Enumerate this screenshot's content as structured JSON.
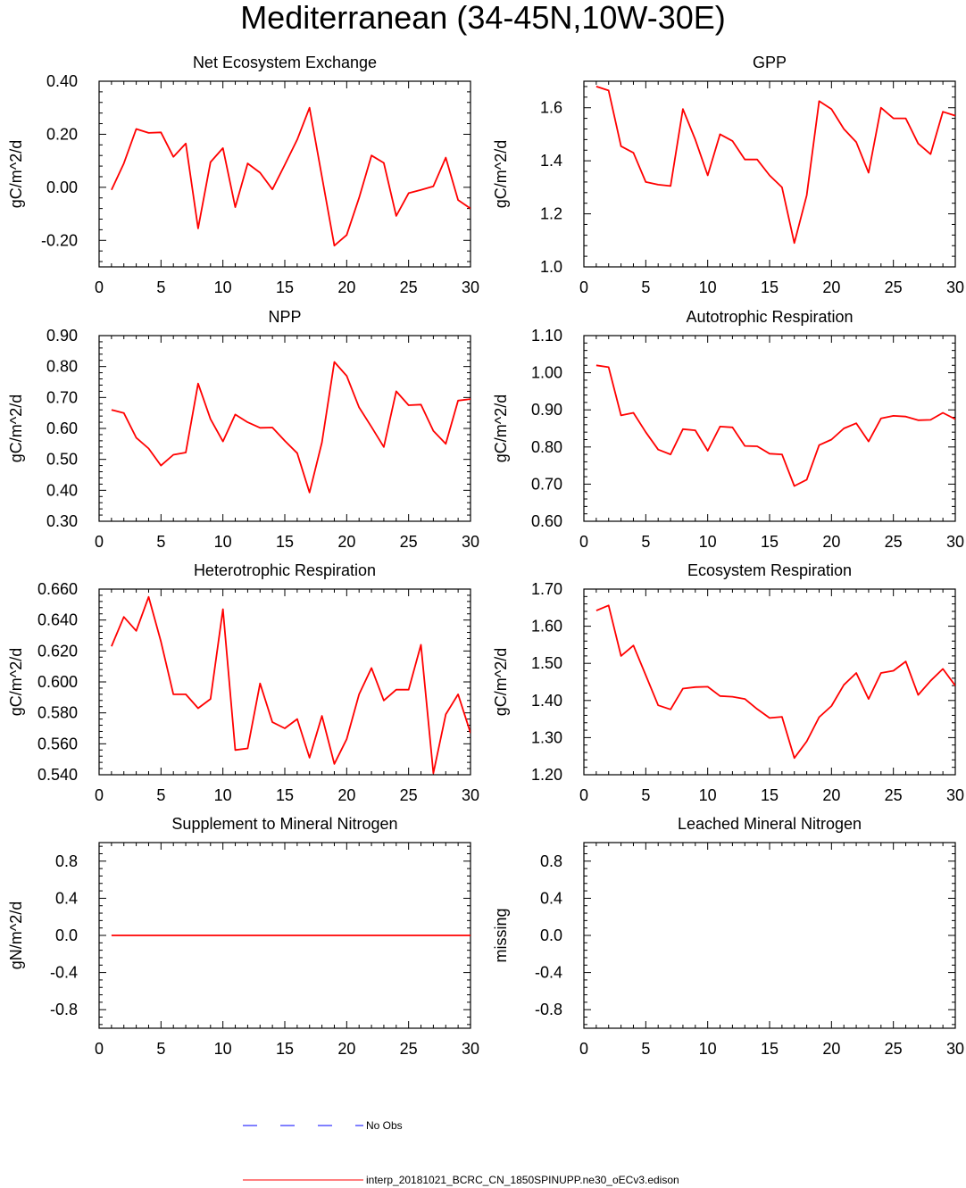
{
  "title": "Mediterranean (34-45N,10W-30E)",
  "colors": {
    "model": "#ff0000",
    "obs": "#0000ff",
    "axis": "#000000"
  },
  "legend": {
    "obs_label": "No Obs",
    "model_label": "interp_20181021_BCRC_CN_1850SPINUPP.ne30_oECv3.edison"
  },
  "chart_data": [
    {
      "type": "line",
      "title": "Net Ecosystem Exchange",
      "ylabel": "gC/m^2/d",
      "xlim": [
        0,
        30
      ],
      "ylim": [
        -0.3,
        0.4
      ],
      "xticks": [
        0,
        5,
        10,
        15,
        20,
        25,
        30
      ],
      "xtick_labels": [
        "0",
        "5",
        "10",
        "15",
        "20",
        "25",
        "30"
      ],
      "yticks": [
        -0.2,
        0.0,
        0.2,
        0.4
      ],
      "ytick_labels": [
        "-0.20",
        "0.00",
        "0.20",
        "0.40"
      ],
      "x": [
        1,
        2,
        3,
        4,
        5,
        6,
        7,
        8,
        9,
        10,
        11,
        12,
        13,
        14,
        15,
        16,
        17,
        18,
        19,
        20,
        21,
        22,
        23,
        24,
        25,
        26,
        27,
        28,
        29,
        30
      ],
      "series": [
        {
          "name": "interp_20181021_BCRC_CN_1850SPINUPP.ne30_oECv3.edison",
          "values": [
            -0.01,
            0.09,
            0.22,
            0.205,
            0.207,
            0.115,
            0.165,
            -0.155,
            0.095,
            0.148,
            -0.075,
            0.09,
            0.055,
            -0.008,
            0.085,
            0.18,
            0.3,
            0.04,
            -0.22,
            -0.18,
            -0.04,
            0.12,
            0.092,
            -0.108,
            -0.022,
            -0.01,
            0.004,
            0.112,
            -0.048,
            -0.08
          ]
        }
      ]
    },
    {
      "type": "line",
      "title": "GPP",
      "ylabel": "gC/m^2/d",
      "xlim": [
        0,
        30
      ],
      "ylim": [
        1.0,
        1.7
      ],
      "xticks": [
        0,
        5,
        10,
        15,
        20,
        25,
        30
      ],
      "xtick_labels": [
        "0",
        "5",
        "10",
        "15",
        "20",
        "25",
        "30"
      ],
      "yticks": [
        1.0,
        1.2,
        1.4,
        1.6
      ],
      "ytick_labels": [
        "1.0",
        "1.2",
        "1.4",
        "1.6"
      ],
      "x": [
        1,
        2,
        3,
        4,
        5,
        6,
        7,
        8,
        9,
        10,
        11,
        12,
        13,
        14,
        15,
        16,
        17,
        18,
        19,
        20,
        21,
        22,
        23,
        24,
        25,
        26,
        27,
        28,
        29,
        30
      ],
      "series": [
        {
          "name": "interp_20181021_BCRC_CN_1850SPINUPP.ne30_oECv3.edison",
          "values": [
            1.68,
            1.665,
            1.455,
            1.43,
            1.32,
            1.31,
            1.305,
            1.595,
            1.48,
            1.345,
            1.5,
            1.475,
            1.405,
            1.405,
            1.345,
            1.3,
            1.09,
            1.27,
            1.625,
            1.595,
            1.52,
            1.47,
            1.355,
            1.6,
            1.56,
            1.56,
            1.465,
            1.425,
            1.585,
            1.57
          ]
        }
      ]
    },
    {
      "type": "line",
      "title": "NPP",
      "ylabel": "gC/m^2/d",
      "xlim": [
        0,
        30
      ],
      "ylim": [
        0.3,
        0.9
      ],
      "xticks": [
        0,
        5,
        10,
        15,
        20,
        25,
        30
      ],
      "xtick_labels": [
        "0",
        "5",
        "10",
        "15",
        "20",
        "25",
        "30"
      ],
      "yticks": [
        0.3,
        0.4,
        0.5,
        0.6,
        0.7,
        0.8,
        0.9
      ],
      "ytick_labels": [
        "0.30",
        "0.40",
        "0.50",
        "0.60",
        "0.70",
        "0.80",
        "0.90"
      ],
      "x": [
        1,
        2,
        3,
        4,
        5,
        6,
        7,
        8,
        9,
        10,
        11,
        12,
        13,
        14,
        15,
        16,
        17,
        18,
        19,
        20,
        21,
        22,
        23,
        24,
        25,
        26,
        27,
        28,
        29,
        30
      ],
      "series": [
        {
          "name": "interp_20181021_BCRC_CN_1850SPINUPP.ne30_oECv3.edison",
          "values": [
            0.66,
            0.65,
            0.57,
            0.535,
            0.48,
            0.515,
            0.522,
            0.745,
            0.63,
            0.558,
            0.645,
            0.62,
            0.602,
            0.603,
            0.56,
            0.52,
            0.393,
            0.555,
            0.815,
            0.77,
            0.668,
            0.605,
            0.54,
            0.72,
            0.675,
            0.677,
            0.592,
            0.55,
            0.69,
            0.695
          ]
        }
      ]
    },
    {
      "type": "line",
      "title": "Autotrophic Respiration",
      "ylabel": "gC/m^2/d",
      "xlim": [
        0,
        30
      ],
      "ylim": [
        0.6,
        1.1
      ],
      "xticks": [
        0,
        5,
        10,
        15,
        20,
        25,
        30
      ],
      "xtick_labels": [
        "0",
        "5",
        "10",
        "15",
        "20",
        "25",
        "30"
      ],
      "yticks": [
        0.6,
        0.7,
        0.8,
        0.9,
        1.0,
        1.1
      ],
      "ytick_labels": [
        "0.60",
        "0.70",
        "0.80",
        "0.90",
        "1.00",
        "1.10"
      ],
      "x": [
        1,
        2,
        3,
        4,
        5,
        6,
        7,
        8,
        9,
        10,
        11,
        12,
        13,
        14,
        15,
        16,
        17,
        18,
        19,
        20,
        21,
        22,
        23,
        24,
        25,
        26,
        27,
        28,
        29,
        30
      ],
      "series": [
        {
          "name": "interp_20181021_BCRC_CN_1850SPINUPP.ne30_oECv3.edison",
          "values": [
            1.02,
            1.015,
            0.885,
            0.892,
            0.84,
            0.793,
            0.78,
            0.848,
            0.845,
            0.79,
            0.855,
            0.853,
            0.803,
            0.802,
            0.782,
            0.78,
            0.695,
            0.712,
            0.805,
            0.82,
            0.85,
            0.864,
            0.815,
            0.877,
            0.884,
            0.882,
            0.872,
            0.873,
            0.892,
            0.875
          ]
        }
      ]
    },
    {
      "type": "line",
      "title": "Heterotrophic Respiration",
      "ylabel": "gC/m^2/d",
      "xlim": [
        0,
        30
      ],
      "ylim": [
        0.54,
        0.66
      ],
      "xticks": [
        0,
        5,
        10,
        15,
        20,
        25,
        30
      ],
      "xtick_labels": [
        "0",
        "5",
        "10",
        "15",
        "20",
        "25",
        "30"
      ],
      "yticks": [
        0.54,
        0.56,
        0.58,
        0.6,
        0.62,
        0.64,
        0.66
      ],
      "ytick_labels": [
        "0.540",
        "0.560",
        "0.580",
        "0.600",
        "0.620",
        "0.640",
        "0.660"
      ],
      "x": [
        1,
        2,
        3,
        4,
        5,
        6,
        7,
        8,
        9,
        10,
        11,
        12,
        13,
        14,
        15,
        16,
        17,
        18,
        19,
        20,
        21,
        22,
        23,
        24,
        25,
        26,
        27,
        28,
        29,
        30
      ],
      "series": [
        {
          "name": "interp_20181021_BCRC_CN_1850SPINUPP.ne30_oECv3.edison",
          "values": [
            0.623,
            0.642,
            0.633,
            0.655,
            0.626,
            0.592,
            0.592,
            0.583,
            0.589,
            0.647,
            0.556,
            0.557,
            0.599,
            0.574,
            0.57,
            0.576,
            0.551,
            0.578,
            0.547,
            0.563,
            0.592,
            0.609,
            0.588,
            0.595,
            0.595,
            0.624,
            0.541,
            0.579,
            0.592,
            0.567
          ]
        }
      ]
    },
    {
      "type": "line",
      "title": "Ecosystem Respiration",
      "ylabel": "gC/m^2/d",
      "xlim": [
        0,
        30
      ],
      "ylim": [
        1.2,
        1.7
      ],
      "xticks": [
        0,
        5,
        10,
        15,
        20,
        25,
        30
      ],
      "xtick_labels": [
        "0",
        "5",
        "10",
        "15",
        "20",
        "25",
        "30"
      ],
      "yticks": [
        1.2,
        1.3,
        1.4,
        1.5,
        1.6,
        1.7
      ],
      "ytick_labels": [
        "1.20",
        "1.30",
        "1.40",
        "1.50",
        "1.60",
        "1.70"
      ],
      "x": [
        1,
        2,
        3,
        4,
        5,
        6,
        7,
        8,
        9,
        10,
        11,
        12,
        13,
        14,
        15,
        16,
        17,
        18,
        19,
        20,
        21,
        22,
        23,
        24,
        25,
        26,
        27,
        28,
        29,
        30
      ],
      "series": [
        {
          "name": "interp_20181021_BCRC_CN_1850SPINUPP.ne30_oECv3.edison",
          "values": [
            1.642,
            1.656,
            1.52,
            1.548,
            1.468,
            1.387,
            1.376,
            1.432,
            1.436,
            1.437,
            1.412,
            1.41,
            1.404,
            1.377,
            1.353,
            1.356,
            1.245,
            1.29,
            1.355,
            1.385,
            1.442,
            1.474,
            1.404,
            1.474,
            1.48,
            1.505,
            1.415,
            1.453,
            1.485,
            1.44
          ]
        }
      ]
    },
    {
      "type": "line",
      "title": "Supplement to Mineral Nitrogen",
      "ylabel": "gN/m^2/d",
      "xlim": [
        0,
        30
      ],
      "ylim": [
        -1.0,
        1.0
      ],
      "xticks": [
        0,
        5,
        10,
        15,
        20,
        25,
        30
      ],
      "xtick_labels": [
        "0",
        "5",
        "10",
        "15",
        "20",
        "25",
        "30"
      ],
      "yticks": [
        -0.8,
        -0.4,
        0.0,
        0.4,
        0.8
      ],
      "ytick_labels": [
        "-0.8",
        "-0.4",
        "0.0",
        "0.4",
        "0.8"
      ],
      "x": [
        1,
        2,
        3,
        4,
        5,
        6,
        7,
        8,
        9,
        10,
        11,
        12,
        13,
        14,
        15,
        16,
        17,
        18,
        19,
        20,
        21,
        22,
        23,
        24,
        25,
        26,
        27,
        28,
        29,
        30
      ],
      "series": [
        {
          "name": "interp_20181021_BCRC_CN_1850SPINUPP.ne30_oECv3.edison",
          "values": [
            0,
            0,
            0,
            0,
            0,
            0,
            0,
            0,
            0,
            0,
            0,
            0,
            0,
            0,
            0,
            0,
            0,
            0,
            0,
            0,
            0,
            0,
            0,
            0,
            0,
            0,
            0,
            0,
            0,
            0
          ]
        }
      ]
    },
    {
      "type": "line",
      "title": "Leached Mineral Nitrogen",
      "ylabel": "missing",
      "xlim": [
        0,
        30
      ],
      "ylim": [
        -1.0,
        1.0
      ],
      "xticks": [
        0,
        5,
        10,
        15,
        20,
        25,
        30
      ],
      "xtick_labels": [
        "0",
        "5",
        "10",
        "15",
        "20",
        "25",
        "30"
      ],
      "yticks": [
        -0.8,
        -0.4,
        0.0,
        0.4,
        0.8
      ],
      "ytick_labels": [
        "-0.8",
        "-0.4",
        "0.0",
        "0.4",
        "0.8"
      ],
      "x": [],
      "series": [
        {
          "name": "interp_20181021_BCRC_CN_1850SPINUPP.ne30_oECv3.edison",
          "values": []
        }
      ]
    }
  ]
}
